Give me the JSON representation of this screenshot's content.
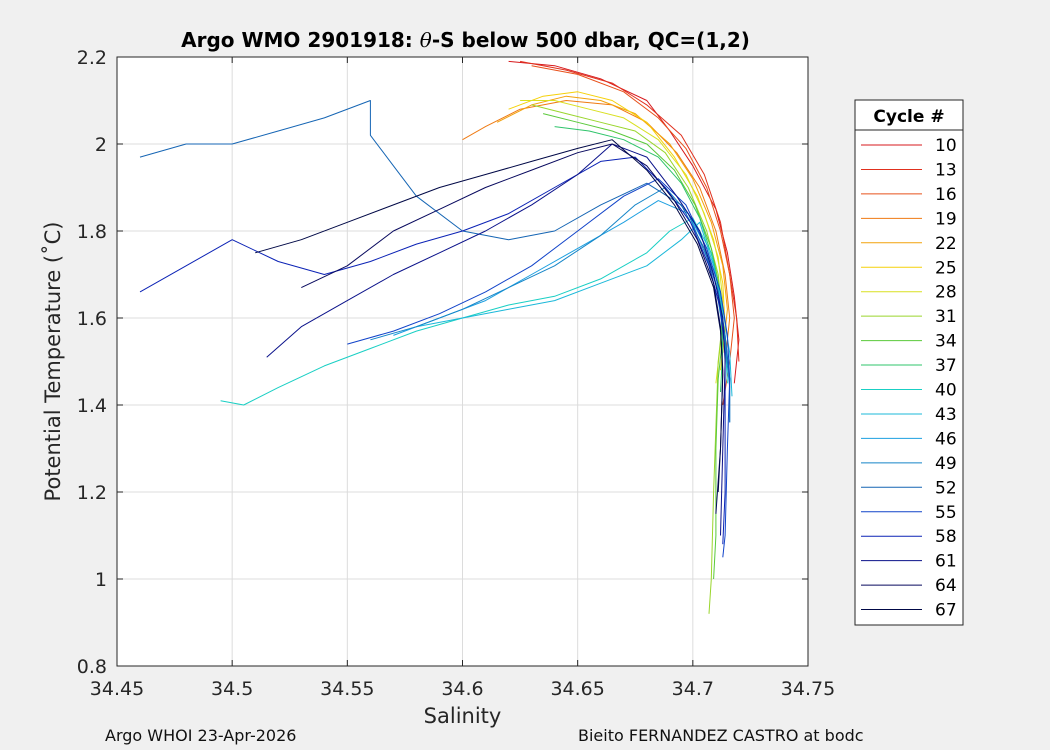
{
  "chart_data": {
    "type": "line",
    "title_prefix": "Argo WMO 2901918: ",
    "title_theta": "θ",
    "title_suffix": "-S below 500 dbar,  QC=(1,2)",
    "xlabel": "Salinity",
    "ylabel": "Potential Temperature (˚C)",
    "xlim": [
      34.45,
      34.75
    ],
    "ylim": [
      0.8,
      2.2
    ],
    "xticks": [
      34.45,
      34.5,
      34.55,
      34.6,
      34.65,
      34.7,
      34.75
    ],
    "xtick_labels": [
      "34.45",
      "34.5",
      "34.55",
      "34.6",
      "34.65",
      "34.7",
      "34.75"
    ],
    "yticks": [
      0.8,
      1.0,
      1.2,
      1.4,
      1.6,
      1.8,
      2.0,
      2.2
    ],
    "ytick_labels": [
      "0.8",
      "1",
      "1.2",
      "1.4",
      "1.6",
      "1.8",
      "2",
      "2.2"
    ],
    "grid": true,
    "legend_title": "Cycle #",
    "legend_position": "outside-right",
    "series": [
      {
        "name": "10",
        "color": "#d7191c",
        "points": [
          [
            34.62,
            2.19
          ],
          [
            34.64,
            2.18
          ],
          [
            34.66,
            2.15
          ],
          [
            34.68,
            2.1
          ],
          [
            34.69,
            2.03
          ],
          [
            34.7,
            1.95
          ],
          [
            34.71,
            1.85
          ],
          [
            34.715,
            1.75
          ],
          [
            34.718,
            1.65
          ],
          [
            34.72,
            1.55
          ],
          [
            34.718,
            1.45
          ]
        ]
      },
      {
        "name": "13",
        "color": "#e0301e",
        "points": [
          [
            34.625,
            2.19
          ],
          [
            34.645,
            2.17
          ],
          [
            34.665,
            2.14
          ],
          [
            34.68,
            2.09
          ],
          [
            34.695,
            2.02
          ],
          [
            34.705,
            1.93
          ],
          [
            34.712,
            1.82
          ],
          [
            34.716,
            1.7
          ],
          [
            34.719,
            1.6
          ],
          [
            34.72,
            1.5
          ]
        ]
      },
      {
        "name": "16",
        "color": "#e8501a",
        "points": [
          [
            34.63,
            2.18
          ],
          [
            34.65,
            2.16
          ],
          [
            34.67,
            2.12
          ],
          [
            34.685,
            2.06
          ],
          [
            34.697,
            1.99
          ],
          [
            34.706,
            1.9
          ],
          [
            34.712,
            1.8
          ],
          [
            34.716,
            1.7
          ],
          [
            34.718,
            1.6
          ],
          [
            34.716,
            1.5
          ],
          [
            34.713,
            1.4
          ]
        ]
      },
      {
        "name": "19",
        "color": "#ef7a12",
        "points": [
          [
            34.6,
            2.01
          ],
          [
            34.61,
            2.04
          ],
          [
            34.625,
            2.08
          ],
          [
            34.645,
            2.1
          ],
          [
            34.665,
            2.09
          ],
          [
            34.68,
            2.05
          ],
          [
            34.693,
            1.98
          ],
          [
            34.703,
            1.9
          ],
          [
            34.71,
            1.8
          ],
          [
            34.714,
            1.7
          ],
          [
            34.716,
            1.6
          ],
          [
            34.714,
            1.5
          ]
        ]
      },
      {
        "name": "22",
        "color": "#f2a20c",
        "points": [
          [
            34.615,
            2.05
          ],
          [
            34.63,
            2.09
          ],
          [
            34.645,
            2.11
          ],
          [
            34.66,
            2.1
          ],
          [
            34.675,
            2.07
          ],
          [
            34.69,
            2.0
          ],
          [
            34.7,
            1.92
          ],
          [
            34.708,
            1.82
          ],
          [
            34.713,
            1.72
          ],
          [
            34.715,
            1.62
          ],
          [
            34.713,
            1.52
          ]
        ]
      },
      {
        "name": "25",
        "color": "#f5d10a",
        "points": [
          [
            34.62,
            2.08
          ],
          [
            34.635,
            2.11
          ],
          [
            34.65,
            2.12
          ],
          [
            34.665,
            2.1
          ],
          [
            34.68,
            2.05
          ],
          [
            34.692,
            1.97
          ],
          [
            34.702,
            1.88
          ],
          [
            34.709,
            1.78
          ],
          [
            34.713,
            1.68
          ],
          [
            34.714,
            1.58
          ],
          [
            34.712,
            1.48
          ]
        ]
      },
      {
        "name": "28",
        "color": "#d9e021",
        "points": [
          [
            34.625,
            2.1
          ],
          [
            34.64,
            2.1
          ],
          [
            34.655,
            2.08
          ],
          [
            34.67,
            2.06
          ],
          [
            34.685,
            2.01
          ],
          [
            34.697,
            1.93
          ],
          [
            34.705,
            1.84
          ],
          [
            34.711,
            1.74
          ],
          [
            34.713,
            1.64
          ],
          [
            34.712,
            1.54
          ],
          [
            34.71,
            1.45
          ]
        ]
      },
      {
        "name": "31",
        "color": "#9ad52c",
        "points": [
          [
            34.63,
            2.09
          ],
          [
            34.645,
            2.07
          ],
          [
            34.66,
            2.05
          ],
          [
            34.675,
            2.03
          ],
          [
            34.688,
            1.98
          ],
          [
            34.698,
            1.9
          ],
          [
            34.706,
            1.8
          ],
          [
            34.711,
            1.7
          ],
          [
            34.713,
            1.6
          ],
          [
            34.711,
            1.5
          ],
          [
            34.709,
            1.2
          ],
          [
            34.708,
            1.0
          ],
          [
            34.707,
            0.92
          ]
        ]
      },
      {
        "name": "34",
        "color": "#59c93a",
        "points": [
          [
            34.635,
            2.07
          ],
          [
            34.65,
            2.05
          ],
          [
            34.665,
            2.03
          ],
          [
            34.68,
            2.0
          ],
          [
            34.692,
            1.94
          ],
          [
            34.701,
            1.86
          ],
          [
            34.708,
            1.76
          ],
          [
            34.712,
            1.66
          ],
          [
            34.713,
            1.56
          ],
          [
            34.711,
            1.46
          ],
          [
            34.71,
            1.3
          ],
          [
            34.71,
            1.1
          ],
          [
            34.709,
            1.0
          ]
        ]
      },
      {
        "name": "37",
        "color": "#2fc46b",
        "points": [
          [
            34.64,
            2.04
          ],
          [
            34.655,
            2.03
          ],
          [
            34.67,
            2.01
          ],
          [
            34.685,
            1.97
          ],
          [
            34.695,
            1.91
          ],
          [
            34.703,
            1.83
          ],
          [
            34.709,
            1.73
          ],
          [
            34.712,
            1.63
          ],
          [
            34.713,
            1.53
          ],
          [
            34.712,
            1.43
          ]
        ]
      },
      {
        "name": "40",
        "color": "#19cfc4",
        "points": [
          [
            34.495,
            1.41
          ],
          [
            34.505,
            1.4
          ],
          [
            34.52,
            1.44
          ],
          [
            34.54,
            1.49
          ],
          [
            34.56,
            1.53
          ],
          [
            34.58,
            1.57
          ],
          [
            34.6,
            1.6
          ],
          [
            34.62,
            1.63
          ],
          [
            34.64,
            1.65
          ],
          [
            34.66,
            1.69
          ],
          [
            34.68,
            1.75
          ],
          [
            34.69,
            1.8
          ],
          [
            34.7,
            1.83
          ],
          [
            34.708,
            1.75
          ],
          [
            34.712,
            1.65
          ],
          [
            34.714,
            1.55
          ],
          [
            34.715,
            1.45
          ]
        ]
      },
      {
        "name": "43",
        "color": "#1bb8d9",
        "points": [
          [
            34.58,
            1.58
          ],
          [
            34.6,
            1.6
          ],
          [
            34.62,
            1.62
          ],
          [
            34.64,
            1.64
          ],
          [
            34.66,
            1.68
          ],
          [
            34.68,
            1.72
          ],
          [
            34.695,
            1.78
          ],
          [
            34.703,
            1.82
          ],
          [
            34.709,
            1.72
          ],
          [
            34.713,
            1.62
          ],
          [
            34.716,
            1.52
          ],
          [
            34.717,
            1.42
          ]
        ]
      },
      {
        "name": "46",
        "color": "#1c9fe0",
        "points": [
          [
            34.57,
            1.56
          ],
          [
            34.59,
            1.6
          ],
          [
            34.61,
            1.64
          ],
          [
            34.63,
            1.7
          ],
          [
            34.65,
            1.76
          ],
          [
            34.67,
            1.82
          ],
          [
            34.685,
            1.87
          ],
          [
            34.698,
            1.84
          ],
          [
            34.706,
            1.76
          ],
          [
            34.711,
            1.66
          ],
          [
            34.714,
            1.56
          ],
          [
            34.716,
            1.46
          ],
          [
            34.716,
            1.36
          ]
        ]
      },
      {
        "name": "49",
        "color": "#1585c8",
        "points": [
          [
            34.56,
            1.55
          ],
          [
            34.58,
            1.58
          ],
          [
            34.6,
            1.62
          ],
          [
            34.62,
            1.67
          ],
          [
            34.64,
            1.72
          ],
          [
            34.66,
            1.79
          ],
          [
            34.675,
            1.86
          ],
          [
            34.688,
            1.9
          ],
          [
            34.698,
            1.84
          ],
          [
            34.706,
            1.74
          ],
          [
            34.711,
            1.64
          ],
          [
            34.714,
            1.54
          ],
          [
            34.716,
            1.44
          ]
        ]
      },
      {
        "name": "52",
        "color": "#1565b4",
        "points": [
          [
            34.46,
            1.97
          ],
          [
            34.48,
            2.0
          ],
          [
            34.5,
            2.0
          ],
          [
            34.52,
            2.03
          ],
          [
            34.54,
            2.06
          ],
          [
            34.555,
            2.09
          ],
          [
            34.56,
            2.1
          ],
          [
            34.56,
            2.02
          ],
          [
            34.57,
            1.95
          ],
          [
            34.58,
            1.88
          ],
          [
            34.6,
            1.8
          ],
          [
            34.62,
            1.78
          ],
          [
            34.64,
            1.8
          ],
          [
            34.66,
            1.86
          ],
          [
            34.68,
            1.91
          ],
          [
            34.695,
            1.86
          ],
          [
            34.705,
            1.76
          ],
          [
            34.711,
            1.66
          ],
          [
            34.714,
            1.56
          ],
          [
            34.716,
            1.46
          ],
          [
            34.716,
            1.36
          ]
        ]
      },
      {
        "name": "55",
        "color": "#1143c9",
        "points": [
          [
            34.55,
            1.54
          ],
          [
            34.57,
            1.57
          ],
          [
            34.59,
            1.61
          ],
          [
            34.61,
            1.66
          ],
          [
            34.63,
            1.72
          ],
          [
            34.65,
            1.8
          ],
          [
            34.67,
            1.88
          ],
          [
            34.685,
            1.92
          ],
          [
            34.697,
            1.86
          ],
          [
            34.706,
            1.76
          ],
          [
            34.712,
            1.66
          ],
          [
            34.715,
            1.56
          ],
          [
            34.716,
            1.46
          ],
          [
            34.715,
            1.3
          ],
          [
            34.714,
            1.1
          ],
          [
            34.713,
            1.05
          ]
        ]
      },
      {
        "name": "58",
        "color": "#0b22b5",
        "points": [
          [
            34.46,
            1.66
          ],
          [
            34.48,
            1.72
          ],
          [
            34.5,
            1.78
          ],
          [
            34.52,
            1.73
          ],
          [
            34.54,
            1.7
          ],
          [
            34.56,
            1.73
          ],
          [
            34.58,
            1.77
          ],
          [
            34.6,
            1.8
          ],
          [
            34.62,
            1.84
          ],
          [
            34.64,
            1.9
          ],
          [
            34.66,
            1.96
          ],
          [
            34.675,
            1.97
          ],
          [
            34.688,
            1.9
          ],
          [
            34.699,
            1.82
          ],
          [
            34.707,
            1.72
          ],
          [
            34.712,
            1.62
          ],
          [
            34.714,
            1.52
          ],
          [
            34.714,
            1.4
          ],
          [
            34.714,
            1.2
          ],
          [
            34.713,
            1.08
          ]
        ]
      },
      {
        "name": "61",
        "color": "#0a118a",
        "points": [
          [
            34.515,
            1.51
          ],
          [
            34.53,
            1.58
          ],
          [
            34.55,
            1.64
          ],
          [
            34.57,
            1.7
          ],
          [
            34.59,
            1.75
          ],
          [
            34.61,
            1.8
          ],
          [
            34.63,
            1.86
          ],
          [
            34.65,
            1.93
          ],
          [
            34.665,
            2.0
          ],
          [
            34.68,
            1.97
          ],
          [
            34.693,
            1.88
          ],
          [
            34.703,
            1.8
          ],
          [
            34.709,
            1.7
          ],
          [
            34.713,
            1.6
          ],
          [
            34.714,
            1.5
          ],
          [
            34.713,
            1.3
          ],
          [
            34.712,
            1.1
          ]
        ]
      },
      {
        "name": "64",
        "color": "#08095e",
        "points": [
          [
            34.53,
            1.67
          ],
          [
            34.55,
            1.72
          ],
          [
            34.57,
            1.8
          ],
          [
            34.59,
            1.85
          ],
          [
            34.61,
            1.9
          ],
          [
            34.63,
            1.94
          ],
          [
            34.65,
            1.98
          ],
          [
            34.665,
            2.0
          ],
          [
            34.68,
            1.95
          ],
          [
            34.692,
            1.87
          ],
          [
            34.702,
            1.78
          ],
          [
            34.709,
            1.68
          ],
          [
            34.712,
            1.58
          ],
          [
            34.713,
            1.48
          ],
          [
            34.712,
            1.3
          ],
          [
            34.71,
            1.15
          ]
        ]
      },
      {
        "name": "67",
        "color": "#000846",
        "points": [
          [
            34.51,
            1.75
          ],
          [
            34.53,
            1.78
          ],
          [
            34.55,
            1.82
          ],
          [
            34.57,
            1.86
          ],
          [
            34.59,
            1.9
          ],
          [
            34.61,
            1.93
          ],
          [
            34.63,
            1.96
          ],
          [
            34.65,
            1.99
          ],
          [
            34.665,
            2.01
          ],
          [
            34.68,
            1.94
          ],
          [
            34.692,
            1.86
          ],
          [
            34.702,
            1.77
          ],
          [
            34.709,
            1.67
          ],
          [
            34.712,
            1.57
          ],
          [
            34.713,
            1.47
          ],
          [
            34.712,
            1.3
          ],
          [
            34.711,
            1.2
          ]
        ]
      }
    ]
  },
  "footer": {
    "left": "Argo WHOI 23-Apr-2026",
    "right": "Bieito FERNANDEZ CASTRO at bodc"
  }
}
